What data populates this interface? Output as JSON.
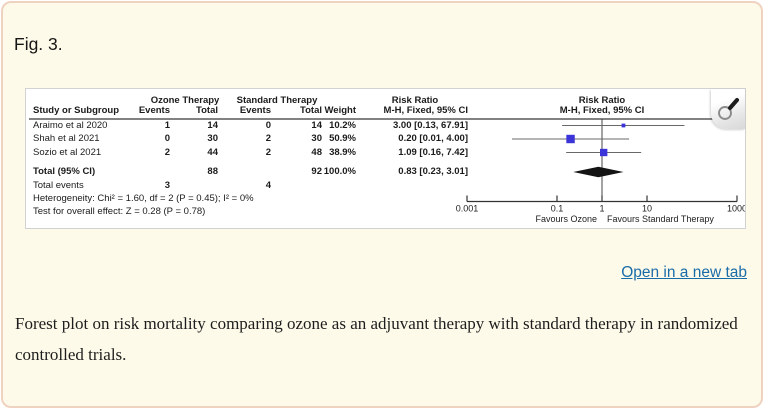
{
  "figure": {
    "label": "Fig. 3.",
    "open_link": "Open in a new tab",
    "caption": "Forest plot on risk mortality comparing ozone as an adjuvant therapy with standard therapy in randomized controlled trials."
  },
  "icons": {
    "zoom": "magnifier-icon"
  },
  "colors": {
    "page_bg": "#FEFAE9",
    "panel_border": "#F0D2C0",
    "link": "#1A6CA8",
    "square": "#3B34D8",
    "diamond": "#141414",
    "ci_line": "#686868",
    "axis": "#333333",
    "text": "#1b1b1b"
  },
  "chart_data": {
    "type": "forest",
    "group_headers": [
      "Ozone Therapy",
      "Standard Therapy"
    ],
    "effect_header": [
      "Risk Ratio",
      "M-H, Fixed, 95% CI"
    ],
    "columns": [
      "Study or Subgroup",
      "Events",
      "Total",
      "Events",
      "Total",
      "Weight",
      "M-H, Fixed, 95% CI"
    ],
    "studies": [
      {
        "name": "Araimo et al 2020",
        "events1": "1",
        "total1": "14",
        "events2": "0",
        "total2": "14",
        "weight": "10.2%",
        "weight_val": 10.2,
        "ci_text": "3.00 [0.13, 67.91]",
        "rr": 3.0,
        "lo": 0.13,
        "hi": 67.91
      },
      {
        "name": "Shah et al 2021",
        "events1": "0",
        "total1": "30",
        "events2": "2",
        "total2": "30",
        "weight": "50.9%",
        "weight_val": 50.9,
        "ci_text": "0.20 [0.01, 4.00]",
        "rr": 0.2,
        "lo": 0.01,
        "hi": 4.0
      },
      {
        "name": "Sozio et al 2021",
        "events1": "2",
        "total1": "44",
        "events2": "2",
        "total2": "48",
        "weight": "38.9%",
        "weight_val": 38.9,
        "ci_text": "1.09 [0.16, 7.42]",
        "rr": 1.09,
        "lo": 0.16,
        "hi": 7.42
      }
    ],
    "total": {
      "label": "Total (95% CI)",
      "total1": "88",
      "total2": "92",
      "weight": "100.0%",
      "ci_text": "0.83 [0.23, 3.01]",
      "rr": 0.83,
      "lo": 0.23,
      "hi": 3.01
    },
    "total_events": {
      "label": "Total events",
      "events1": "3",
      "events2": "4"
    },
    "heterogeneity": "Heterogeneity: Chi² = 1.60, df = 2 (P = 0.45); I² = 0%",
    "overall_effect": "Test for overall effect: Z = 0.28 (P = 0.78)",
    "axis": {
      "scale": "log",
      "min": 0.001,
      "max": 1000,
      "ticks": [
        0.001,
        0.1,
        1,
        10,
        1000
      ],
      "tick_labels": [
        "0.001",
        "0.1",
        "1",
        "10",
        "1000"
      ]
    },
    "footer_left": "Favours Ozone",
    "footer_right": "Favours Standard Therapy"
  }
}
